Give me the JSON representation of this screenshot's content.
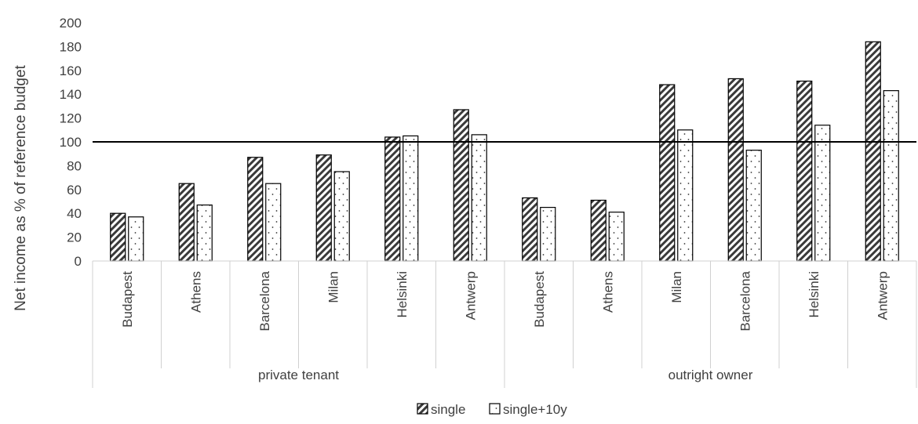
{
  "chart_data": {
    "type": "bar",
    "ylabel": "Net income as % of reference budget",
    "xlabel": "",
    "ylim": [
      0,
      200
    ],
    "yticks": [
      0,
      20,
      40,
      60,
      80,
      100,
      120,
      140,
      160,
      180,
      200
    ],
    "reference_line": 100,
    "grid": false,
    "legend_position": "bottom",
    "groups": [
      {
        "label": "private tenant",
        "categories": [
          "Budapest",
          "Athens",
          "Barcelona",
          "Milan",
          "Helsinki",
          "Antwerp"
        ],
        "series": [
          {
            "name": "single",
            "values": [
              40,
              65,
              87,
              89,
              104,
              127
            ]
          },
          {
            "name": "single+10y",
            "values": [
              37,
              47,
              65,
              75,
              105,
              106
            ]
          }
        ]
      },
      {
        "label": "outright owner",
        "categories": [
          "Budapest",
          "Athens",
          "Milan",
          "Barcelona",
          "Helsinki",
          "Antwerp"
        ],
        "series": [
          {
            "name": "single",
            "values": [
              53,
              51,
              148,
              153,
              151,
              184
            ]
          },
          {
            "name": "single+10y",
            "values": [
              45,
              41,
              110,
              93,
              114,
              143
            ]
          }
        ]
      }
    ],
    "legend": [
      {
        "name": "single",
        "pattern": "diagonal-hatch"
      },
      {
        "name": "single+10y",
        "pattern": "dots"
      }
    ]
  }
}
